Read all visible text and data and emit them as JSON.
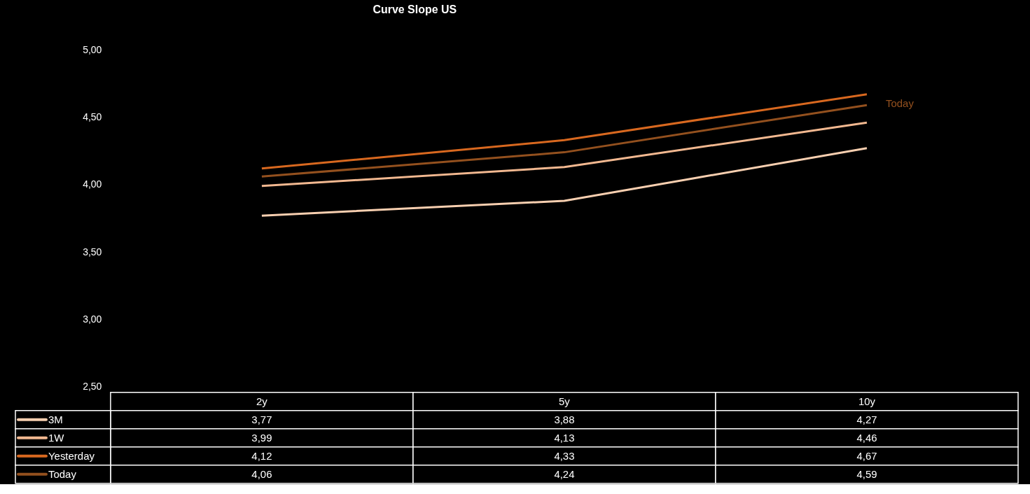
{
  "chart_data": {
    "type": "line",
    "title": "Curve Slope US",
    "categories": [
      "2y",
      "5y",
      "10y"
    ],
    "series": [
      {
        "name": "3M",
        "color": "#f8cfb0",
        "values": [
          3.77,
          3.88,
          4.27
        ],
        "value_labels": [
          "3,77",
          "3,88",
          "4,27"
        ]
      },
      {
        "name": "1W",
        "color": "#f2b890",
        "values": [
          3.99,
          4.13,
          4.46
        ],
        "value_labels": [
          "3,99",
          "4,13",
          "4,46"
        ]
      },
      {
        "name": "Yesterday",
        "color": "#d8681f",
        "values": [
          4.12,
          4.33,
          4.67
        ],
        "value_labels": [
          "4,12",
          "4,33",
          "4,67"
        ]
      },
      {
        "name": "Today",
        "color": "#93501e",
        "values": [
          4.06,
          4.24,
          4.59
        ],
        "value_labels": [
          "4,06",
          "4,24",
          "4,59"
        ]
      }
    ],
    "ylim": [
      2.5,
      5.0
    ],
    "yticks": [
      {
        "value": 2.5,
        "label": "2,50"
      },
      {
        "value": 3.0,
        "label": "3,00"
      },
      {
        "value": 3.5,
        "label": "3,50"
      },
      {
        "value": 4.0,
        "label": "4,00"
      },
      {
        "value": 4.5,
        "label": "4,50"
      },
      {
        "value": 5.0,
        "label": "5,00"
      }
    ],
    "grid": false,
    "legend": "bottom",
    "marker": "none",
    "line_style": "solid",
    "annotations": [
      {
        "text": "Today",
        "x": "10y",
        "y": 4.6
      }
    ]
  }
}
